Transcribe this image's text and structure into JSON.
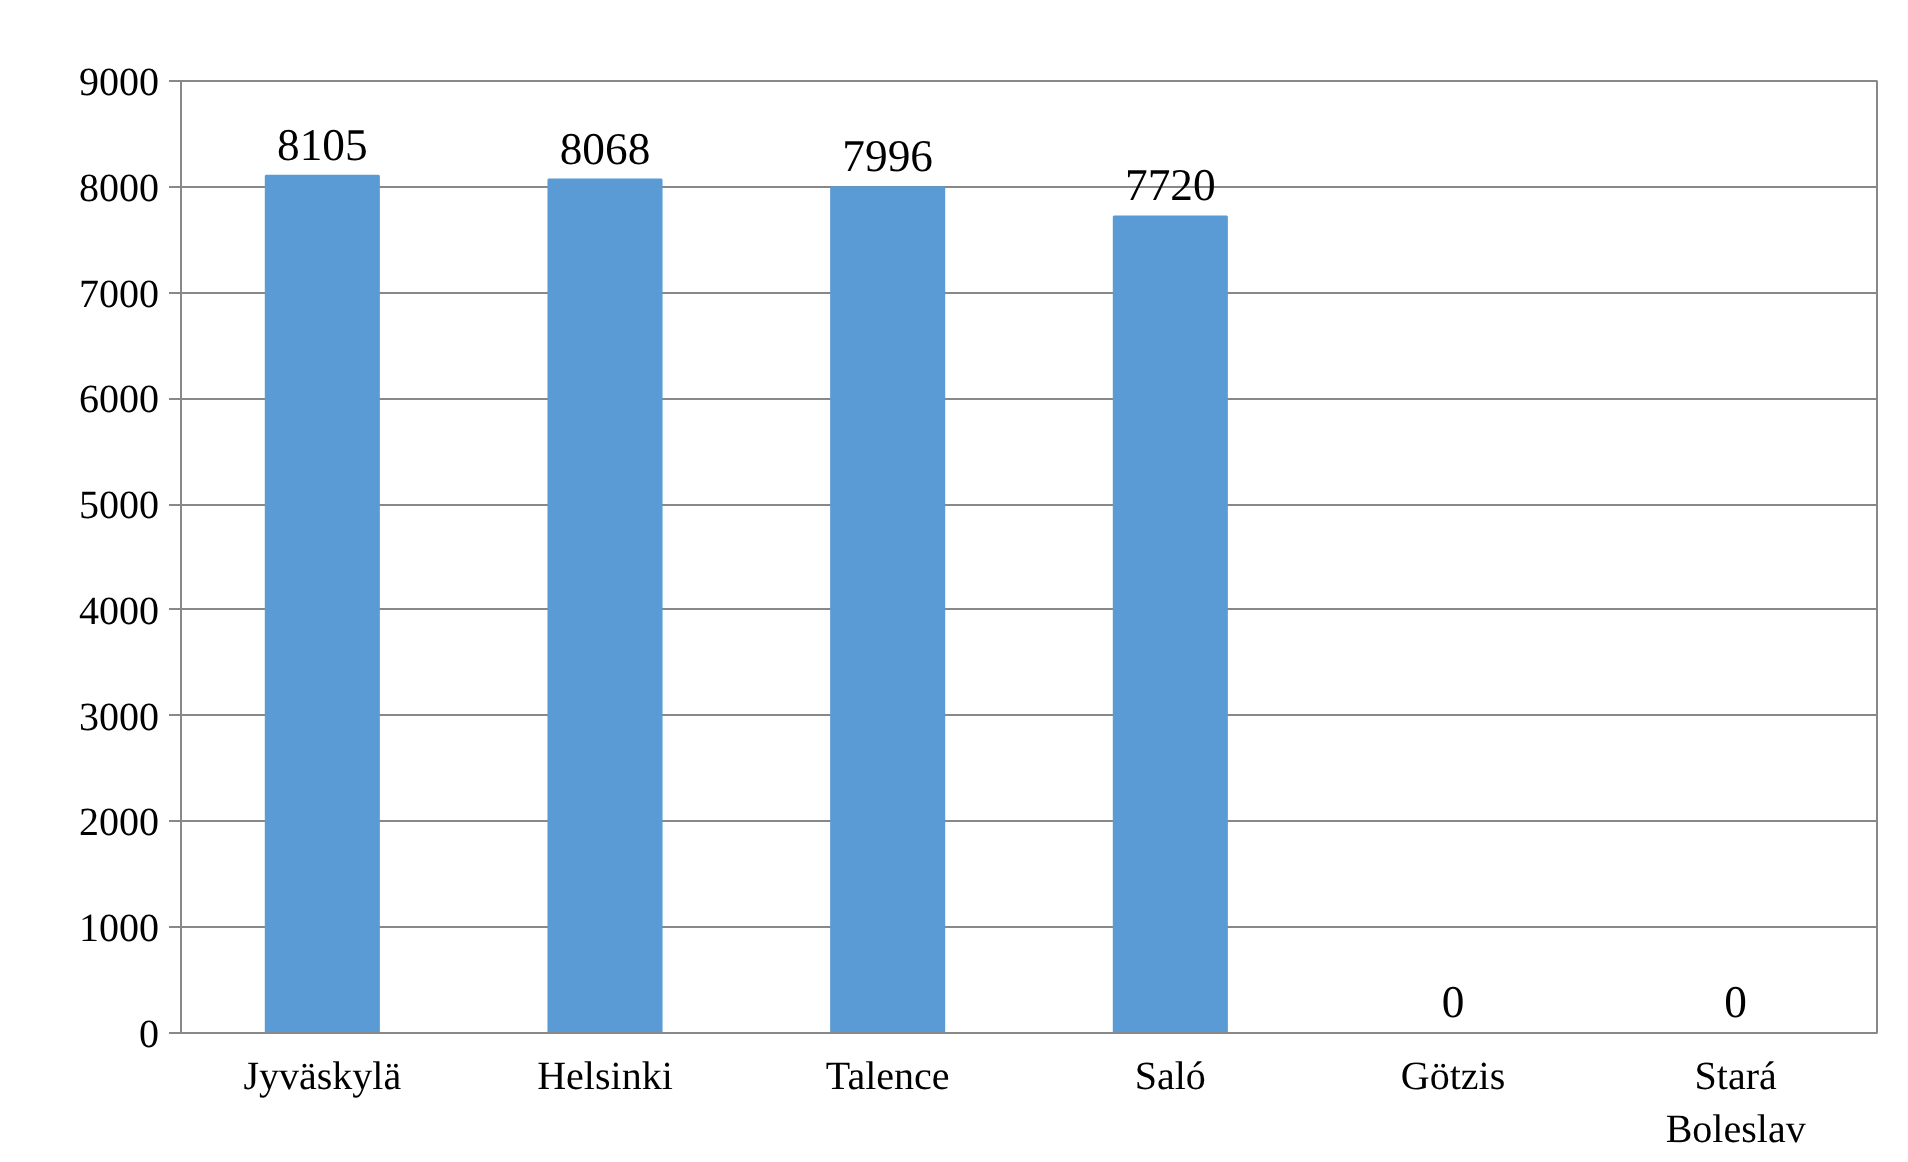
{
  "chart_data": {
    "type": "bar",
    "categories": [
      "Jyväskylä",
      "Helsinki",
      "Talence",
      "Saló",
      "Götzis",
      "Stará Boleslav"
    ],
    "values": [
      8105,
      8068,
      7996,
      7720,
      0,
      0
    ],
    "color": "#5b9bd5",
    "ylim": [
      0,
      9000
    ],
    "yticks": [
      0,
      1000,
      2000,
      3000,
      4000,
      5000,
      6000,
      7000,
      8000,
      9000
    ],
    "grid": "y",
    "data_labels": true
  }
}
